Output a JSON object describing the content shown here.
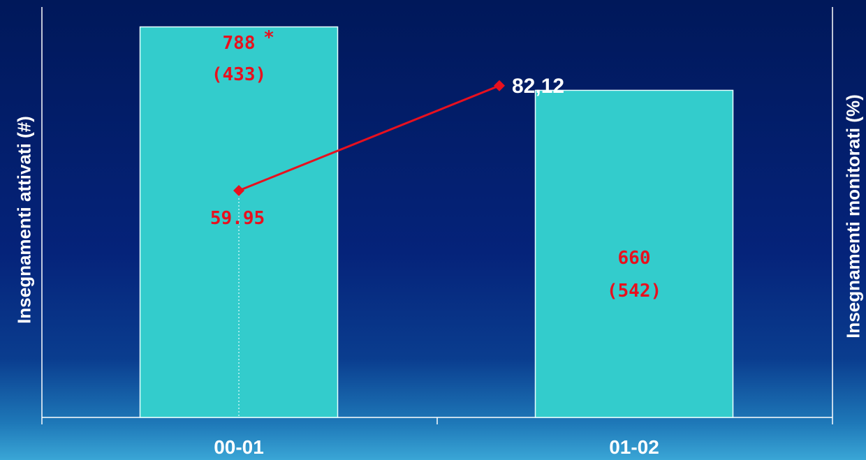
{
  "chart_data": {
    "type": "bar",
    "categories": [
      "00-01",
      "01-02"
    ],
    "series": [
      {
        "type": "bar",
        "axis": "left",
        "values": [
          788,
          660
        ],
        "value_labels": [
          "788",
          "660"
        ],
        "secondary_labels": [
          "(433)",
          "(542)"
        ],
        "color": "#33cccc"
      },
      {
        "type": "line",
        "axis": "right",
        "values": [
          59.95,
          82.12
        ],
        "value_labels": [
          "59.95",
          "82,12"
        ],
        "color": "#e8101e"
      }
    ],
    "xlabel": "",
    "ylabel": "Insegnamenti attivati (#)",
    "y2label": "Insegnamenti monitorati (%)",
    "annotation": "*",
    "colors": {
      "bar": "#33cccc",
      "line": "#e8101e",
      "label_red": "#e8101e",
      "label_white": "#ffffff",
      "axis": "#ffffff"
    }
  }
}
